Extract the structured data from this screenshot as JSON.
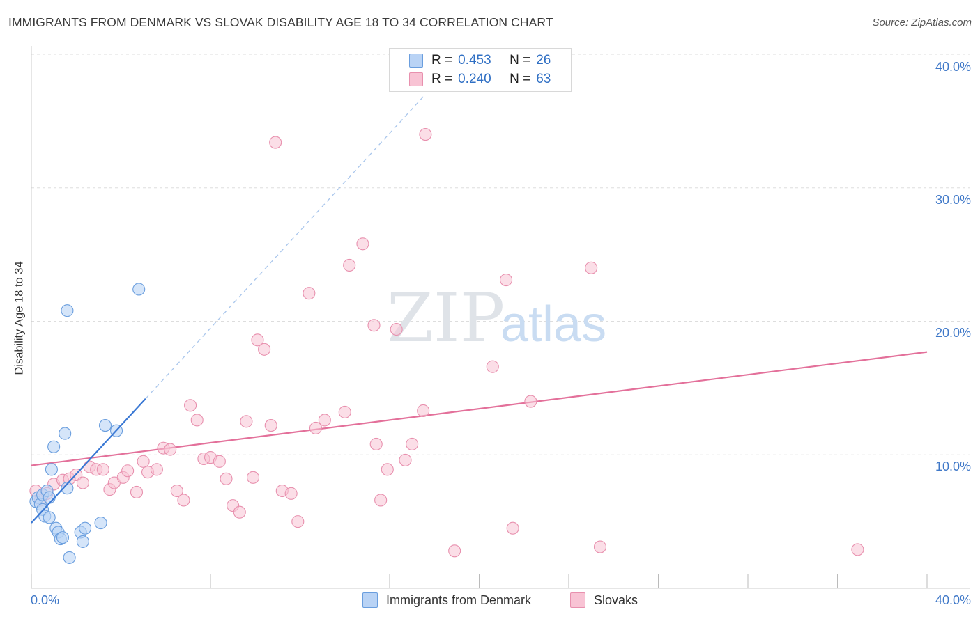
{
  "title": "IMMIGRANTS FROM DENMARK VS SLOVAK DISABILITY AGE 18 TO 34 CORRELATION CHART",
  "source": "Source: ZipAtlas.com",
  "watermark": {
    "zip": "ZIP",
    "atlas": "atlas"
  },
  "legend": {
    "denmark": {
      "r_label": "R =",
      "r_value": "0.453",
      "n_label": "N =",
      "n_value": "26"
    },
    "slovak": {
      "r_label": "R =",
      "r_value": "0.240",
      "n_label": "N =",
      "n_value": "63"
    }
  },
  "colors": {
    "denmark_fill": "#b9d3f5",
    "denmark_stroke": "#6a9ede",
    "denmark_line": "#3a78d4",
    "slovak_fill": "#f8c3d4",
    "slovak_stroke": "#e890ae",
    "slovak_line": "#e3709a",
    "grid": "#dddddd",
    "axis_text": "#3f78c8"
  },
  "chart_data": {
    "type": "scatter",
    "title": "IMMIGRANTS FROM DENMARK VS SLOVAK DISABILITY AGE 18 TO 34 CORRELATION CHART",
    "xlabel": "",
    "ylabel": "Disability Age 18 to 34",
    "xlim": [
      0,
      40
    ],
    "ylim": [
      0,
      40
    ],
    "x_tick_labels": [
      "0.0%",
      "40.0%"
    ],
    "y_tick_labels": [
      "10.0%",
      "20.0%",
      "30.0%",
      "40.0%"
    ],
    "y_ticks": [
      10,
      20,
      30,
      40
    ],
    "grid": true,
    "series": [
      {
        "name": "Immigrants from Denmark",
        "points": [
          [
            0.2,
            6.5
          ],
          [
            0.3,
            6.8
          ],
          [
            0.4,
            6.3
          ],
          [
            0.5,
            7.0
          ],
          [
            0.5,
            5.9
          ],
          [
            0.6,
            5.4
          ],
          [
            0.7,
            7.3
          ],
          [
            0.8,
            6.8
          ],
          [
            0.8,
            5.3
          ],
          [
            0.9,
            8.9
          ],
          [
            1.0,
            10.6
          ],
          [
            1.1,
            4.5
          ],
          [
            1.2,
            4.2
          ],
          [
            1.3,
            3.7
          ],
          [
            1.4,
            3.8
          ],
          [
            1.5,
            11.6
          ],
          [
            1.6,
            7.5
          ],
          [
            1.7,
            2.3
          ],
          [
            2.2,
            4.2
          ],
          [
            2.3,
            3.5
          ],
          [
            2.4,
            4.5
          ],
          [
            3.1,
            4.9
          ],
          [
            3.3,
            12.2
          ],
          [
            3.8,
            11.8
          ],
          [
            1.6,
            20.8
          ],
          [
            4.8,
            22.4
          ]
        ],
        "trend_solid": [
          [
            0.0,
            4.9
          ],
          [
            5.1,
            14.2
          ]
        ],
        "trend_dashed": [
          [
            5.1,
            14.2
          ],
          [
            17.6,
            37.0
          ]
        ]
      },
      {
        "name": "Slovaks",
        "points": [
          [
            0.2,
            7.3
          ],
          [
            0.4,
            6.6
          ],
          [
            0.7,
            7.1
          ],
          [
            1.0,
            7.8
          ],
          [
            1.4,
            8.1
          ],
          [
            1.7,
            8.2
          ],
          [
            2.0,
            8.5
          ],
          [
            2.3,
            7.9
          ],
          [
            2.6,
            9.1
          ],
          [
            2.9,
            8.9
          ],
          [
            3.2,
            8.9
          ],
          [
            3.5,
            7.4
          ],
          [
            3.7,
            7.9
          ],
          [
            4.1,
            8.3
          ],
          [
            4.3,
            8.8
          ],
          [
            4.7,
            7.2
          ],
          [
            5.0,
            9.5
          ],
          [
            5.2,
            8.7
          ],
          [
            5.6,
            8.9
          ],
          [
            5.9,
            10.5
          ],
          [
            6.2,
            10.4
          ],
          [
            6.5,
            7.3
          ],
          [
            6.8,
            6.6
          ],
          [
            7.1,
            13.7
          ],
          [
            7.4,
            12.6
          ],
          [
            7.7,
            9.7
          ],
          [
            8.0,
            9.8
          ],
          [
            8.4,
            9.5
          ],
          [
            8.7,
            8.2
          ],
          [
            9.0,
            6.2
          ],
          [
            9.3,
            5.7
          ],
          [
            9.6,
            12.5
          ],
          [
            9.9,
            8.3
          ],
          [
            10.1,
            18.6
          ],
          [
            10.4,
            17.9
          ],
          [
            10.7,
            12.2
          ],
          [
            11.2,
            7.3
          ],
          [
            11.6,
            7.1
          ],
          [
            11.9,
            5.0
          ],
          [
            12.4,
            22.1
          ],
          [
            12.7,
            12.0
          ],
          [
            13.1,
            12.6
          ],
          [
            14.0,
            13.2
          ],
          [
            14.2,
            24.2
          ],
          [
            14.8,
            25.8
          ],
          [
            15.3,
            19.7
          ],
          [
            15.4,
            10.8
          ],
          [
            15.6,
            6.6
          ],
          [
            15.9,
            8.9
          ],
          [
            16.3,
            19.4
          ],
          [
            16.7,
            9.6
          ],
          [
            17.0,
            10.8
          ],
          [
            17.5,
            13.3
          ],
          [
            18.9,
            2.8
          ],
          [
            20.6,
            16.6
          ],
          [
            21.2,
            23.1
          ],
          [
            21.5,
            4.5
          ],
          [
            22.3,
            14.0
          ],
          [
            25.0,
            24.0
          ],
          [
            25.4,
            3.1
          ],
          [
            36.9,
            2.9
          ],
          [
            10.9,
            33.4
          ],
          [
            17.6,
            34.0
          ]
        ],
        "trend_solid": [
          [
            0.0,
            9.2
          ],
          [
            40.0,
            17.7
          ]
        ]
      }
    ]
  },
  "bottom_legend": {
    "denmark_label": "Immigrants from Denmark",
    "slovak_label": "Slovaks"
  }
}
